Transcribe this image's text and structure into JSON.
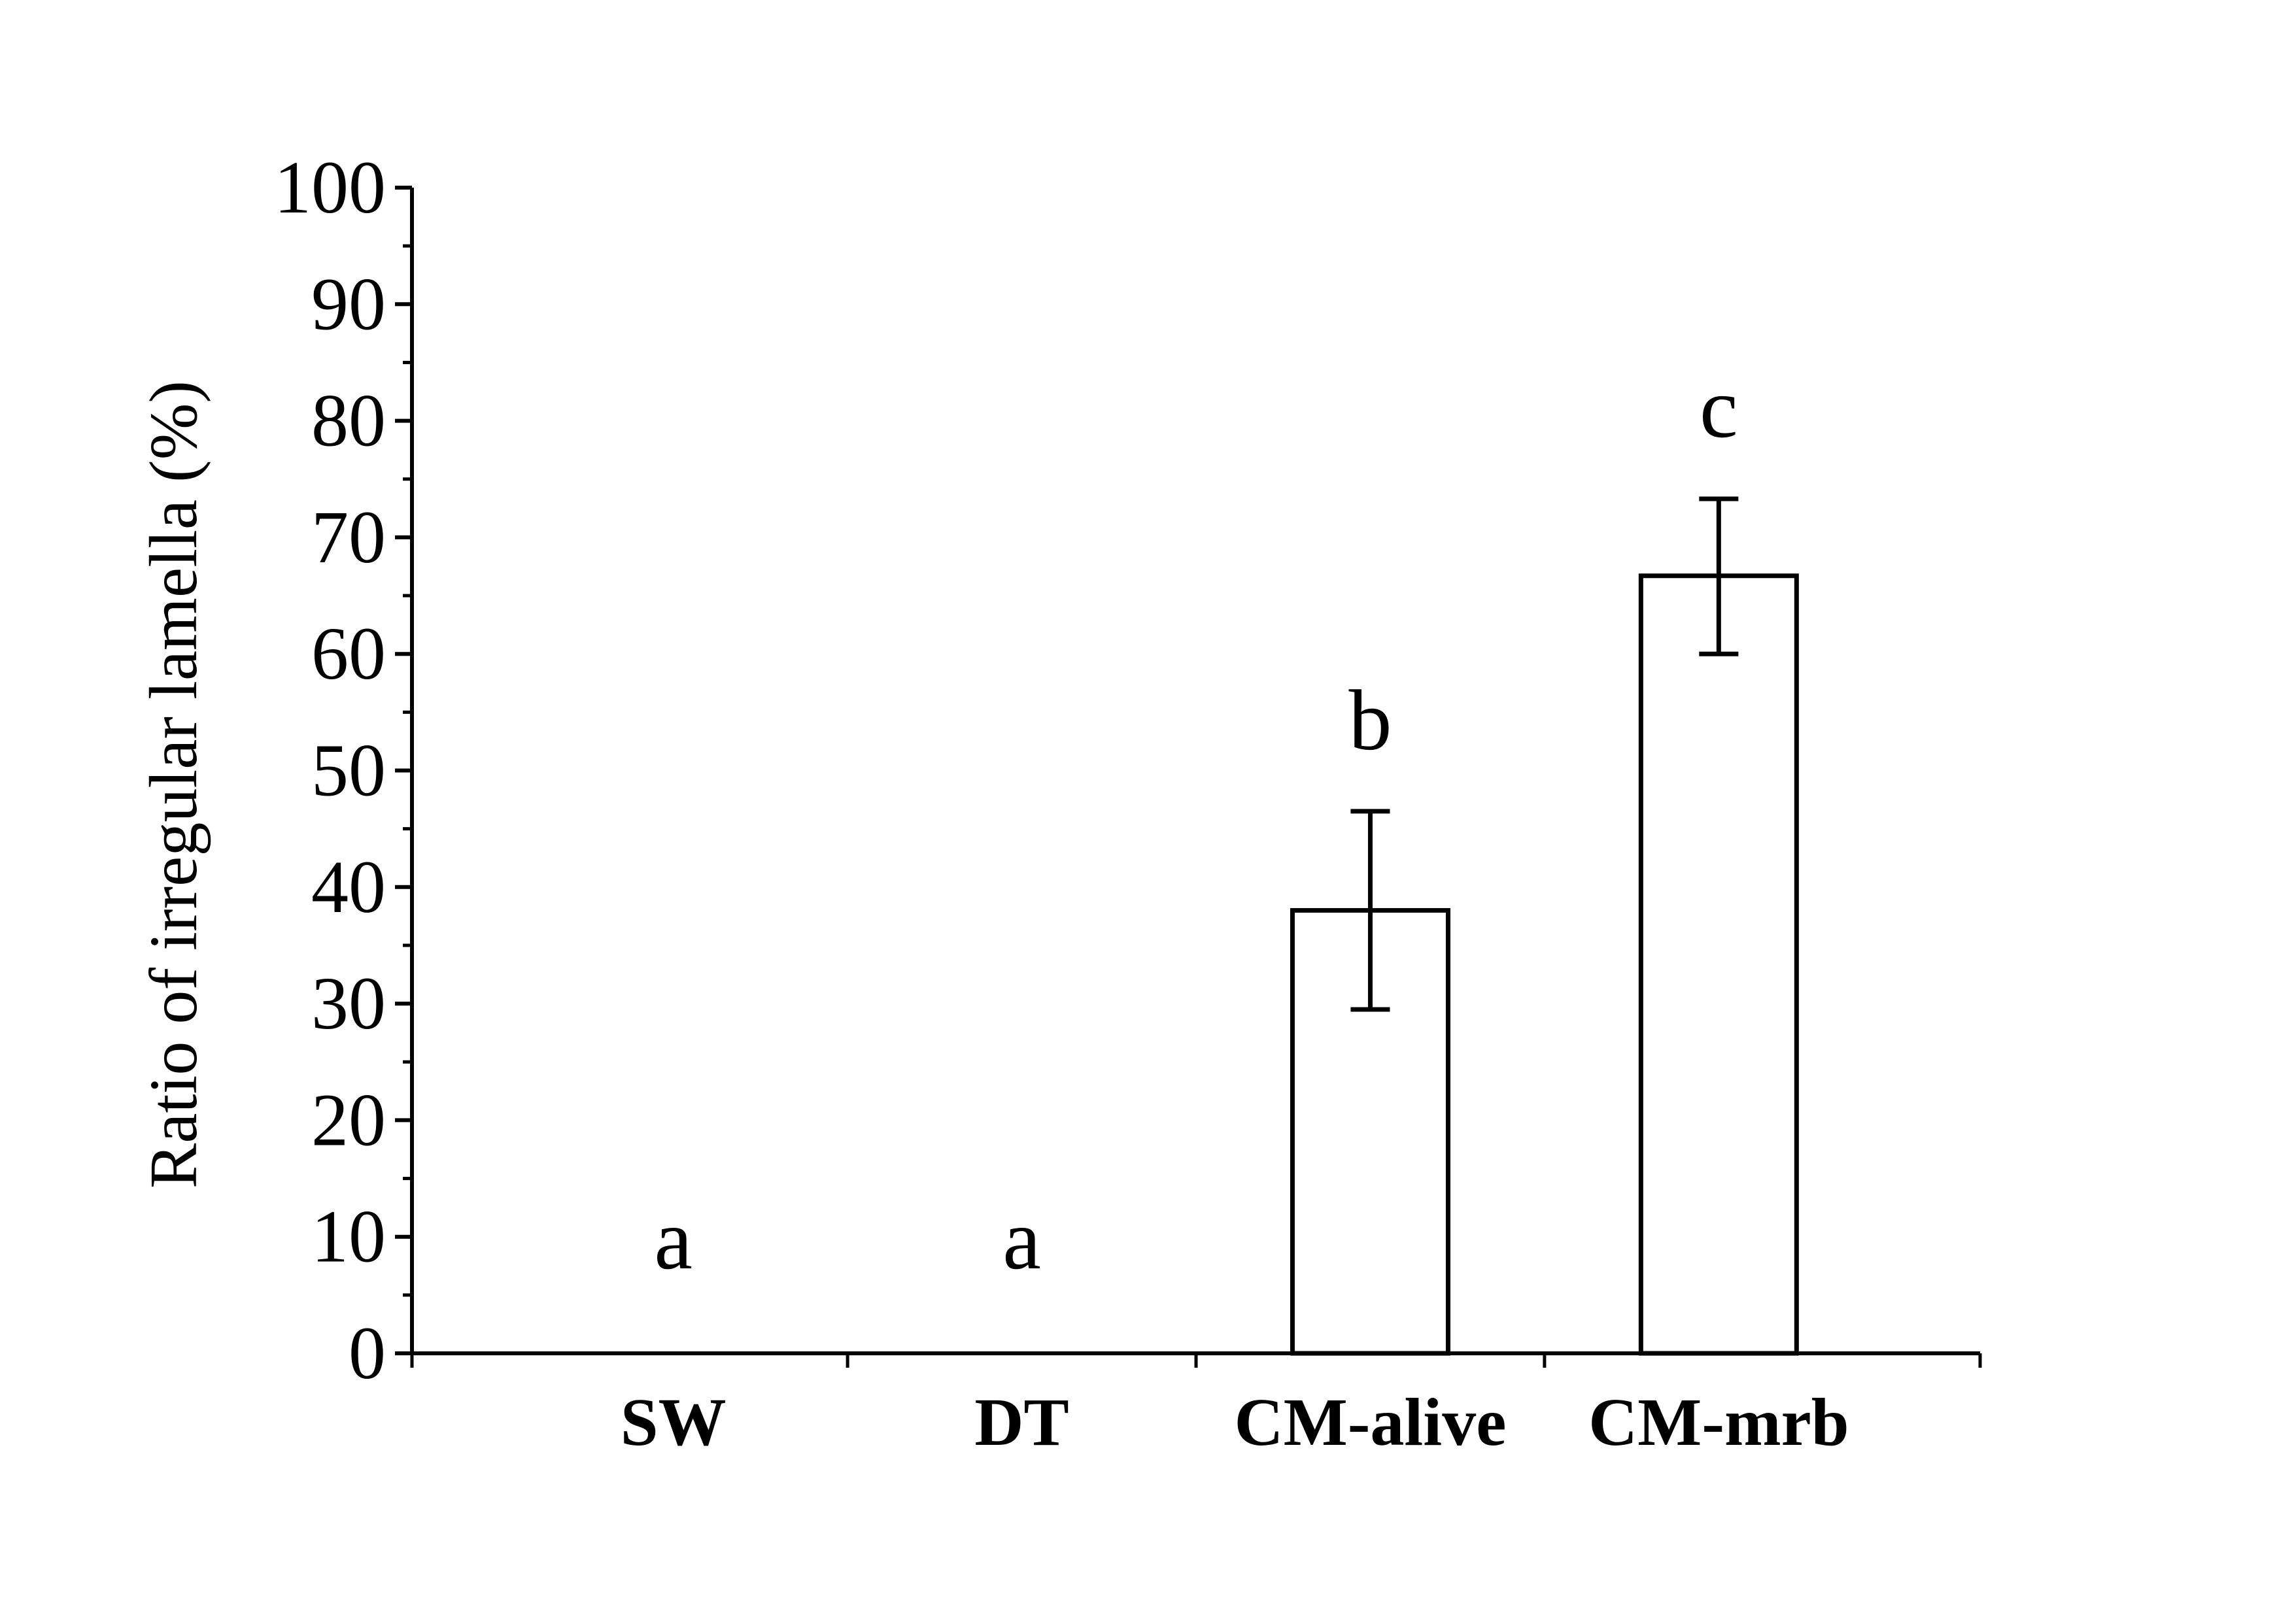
{
  "chart_data": {
    "type": "bar",
    "title": "",
    "xlabel": "",
    "ylabel": "Ratio of irregular lamella (%)",
    "ylim": [
      0,
      100
    ],
    "y_ticks": [
      0,
      10,
      20,
      30,
      40,
      50,
      60,
      70,
      80,
      90,
      100
    ],
    "y_tick_labels": [
      "0",
      "10",
      "20",
      "30",
      "40",
      "50",
      "60",
      "70",
      "80",
      "90",
      "100"
    ],
    "categories": [
      "SW",
      "DT",
      "CM-alive",
      "CM-mrb"
    ],
    "values": [
      0,
      0,
      38,
      66.7
    ],
    "error_low": [
      null,
      null,
      29.5,
      60
    ],
    "error_high": [
      null,
      null,
      46.5,
      73.3
    ],
    "significance_letters": [
      "a",
      "a",
      "b",
      "c"
    ],
    "grid": false,
    "legend": "none",
    "colors": {
      "bar_fill": "#ffffff",
      "bar_stroke": "#000000",
      "axis": "#000000"
    }
  }
}
